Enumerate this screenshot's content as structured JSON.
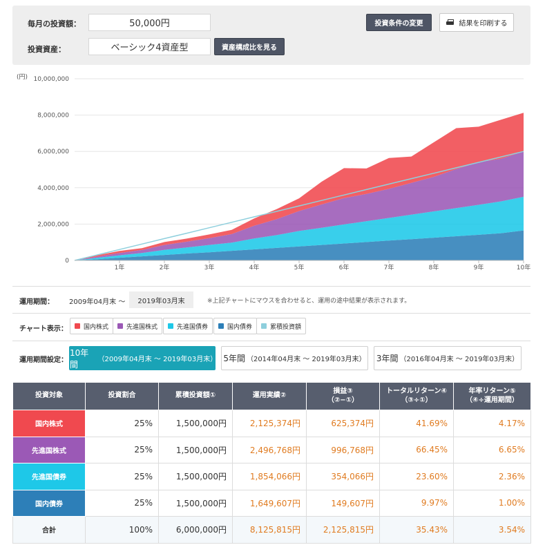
{
  "settings": {
    "monthly_label": "毎月の投資額：",
    "monthly_value": "50,000円",
    "asset_label": "投資資産：",
    "asset_value": "ベーシック4資産型",
    "composition_button": "資産構成比を見る",
    "change_button": "投資条件の変更",
    "print_button": "結果を印刷する"
  },
  "info": {
    "period_label": "運用期間：",
    "period_start": "2009年04月末 ～",
    "period_end": "2019年03月末",
    "note": "※上記チャートにマウスを合わせると、運用の途中結果が表示されます。",
    "chart_display_label": "チャート表示：",
    "period_setting_label": "運用期間設定："
  },
  "legend": [
    {
      "label": "国内株式",
      "color": "#f0494f"
    },
    {
      "label": "先進国株式",
      "color": "#9b59b6"
    },
    {
      "label": "先進国債券",
      "color": "#1ec8e8"
    },
    {
      "label": "国内債券",
      "color": "#2d7fb8"
    },
    {
      "label": "累積投資額",
      "color": "#8ecfdd"
    }
  ],
  "period_buttons": [
    {
      "main": "10年間",
      "sub": "（2009年04月末 ～ 2019年03月末）"
    },
    {
      "main": "5年間",
      "sub": "（2014年04月末 ～ 2019年03月末）"
    },
    {
      "main": "3年間",
      "sub": "（2016年04月末 ～ 2019年03月末）"
    }
  ],
  "table": {
    "headers": [
      "投資対象",
      "投資割合",
      "累積投資額①",
      "運用実績②",
      "損益③\n（②−①）",
      "トータルリターン④\n（③÷①）",
      "年率リターン⑤\n（④÷運用期間）"
    ],
    "rows": [
      {
        "name": "国内株式",
        "color": "#f0494f",
        "ratio": "25%",
        "invested": "1,500,000円",
        "result": "2,125,374円",
        "profit": "625,374円",
        "total_return": "41.69%",
        "annual_return": "4.17%"
      },
      {
        "name": "先進国株式",
        "color": "#9b59b6",
        "ratio": "25%",
        "invested": "1,500,000円",
        "result": "2,496,768円",
        "profit": "996,768円",
        "total_return": "66.45%",
        "annual_return": "6.65%"
      },
      {
        "name": "先進国債券",
        "color": "#1ec8e8",
        "ratio": "25%",
        "invested": "1,500,000円",
        "result": "1,854,066円",
        "profit": "354,066円",
        "total_return": "23.60%",
        "annual_return": "2.36%"
      },
      {
        "name": "国内債券",
        "color": "#2d7fb8",
        "ratio": "25%",
        "invested": "1,500,000円",
        "result": "1,649,607円",
        "profit": "149,607円",
        "total_return": "9.97%",
        "annual_return": "1.00%"
      }
    ],
    "total": {
      "name": "合計",
      "ratio": "100%",
      "invested": "6,000,000円",
      "result": "8,125,815円",
      "profit": "2,125,815円",
      "total_return": "35.43%",
      "annual_return": "3.54%"
    }
  },
  "chart_data": {
    "type": "area",
    "stacked": true,
    "yunit_label": "(円)",
    "ylim": [
      0,
      10000000
    ],
    "yticks": [
      0,
      2000000,
      4000000,
      6000000,
      8000000,
      10000000
    ],
    "ytick_labels": [
      "0",
      "2,000,000",
      "4,000,000",
      "6,000,000",
      "8,000,000",
      "10,000,000"
    ],
    "xlim": [
      0,
      10
    ],
    "xticks": [
      1,
      2,
      3,
      4,
      5,
      6,
      7,
      8,
      9,
      10
    ],
    "xtick_labels": [
      "1年",
      "2年",
      "3年",
      "4年",
      "5年",
      "6年",
      "7年",
      "8年",
      "9年",
      "10年"
    ],
    "x": [
      0,
      0.5,
      1,
      1.5,
      2,
      2.5,
      3,
      3.5,
      4,
      4.5,
      5,
      5.5,
      6,
      6.5,
      7,
      7.5,
      8,
      8.5,
      9,
      9.5,
      10
    ],
    "series": [
      {
        "name": "国内債券",
        "color": "#2d7fb8",
        "values": [
          0,
          70000,
          150000,
          225000,
          300000,
          380000,
          450000,
          530000,
          610000,
          690000,
          770000,
          850000,
          930000,
          1010000,
          1090000,
          1170000,
          1250000,
          1330000,
          1410000,
          1500000,
          1650000
        ]
      },
      {
        "name": "先進国債券",
        "color": "#1ec8e8",
        "values": [
          0,
          70000,
          130000,
          180000,
          280000,
          330000,
          400000,
          450000,
          600000,
          700000,
          850000,
          950000,
          1050000,
          1150000,
          1250000,
          1350000,
          1450000,
          1550000,
          1650000,
          1750000,
          1850000
        ]
      },
      {
        "name": "先進国株式",
        "color": "#9b59b6",
        "values": [
          0,
          70000,
          130000,
          170000,
          270000,
          320000,
          380000,
          470000,
          700000,
          880000,
          1100000,
          1280000,
          1450000,
          1500000,
          1600000,
          1750000,
          1900000,
          2150000,
          2350000,
          2350000,
          2500000
        ]
      },
      {
        "name": "国内株式",
        "color": "#f0494f",
        "values": [
          0,
          70000,
          110000,
          100000,
          160000,
          170000,
          200000,
          230000,
          400000,
          550000,
          700000,
          1250000,
          1650000,
          1400000,
          1700000,
          1450000,
          1900000,
          2250000,
          1950000,
          2150000,
          2125000
        ]
      }
    ],
    "cumulative": {
      "name": "累積投資額",
      "color": "#8ecfdd",
      "values": [
        0,
        300000,
        600000,
        900000,
        1200000,
        1500000,
        1800000,
        2100000,
        2400000,
        2700000,
        3000000,
        3300000,
        3600000,
        3900000,
        4200000,
        4500000,
        4800000,
        5100000,
        5400000,
        5700000,
        6000000
      ]
    }
  }
}
